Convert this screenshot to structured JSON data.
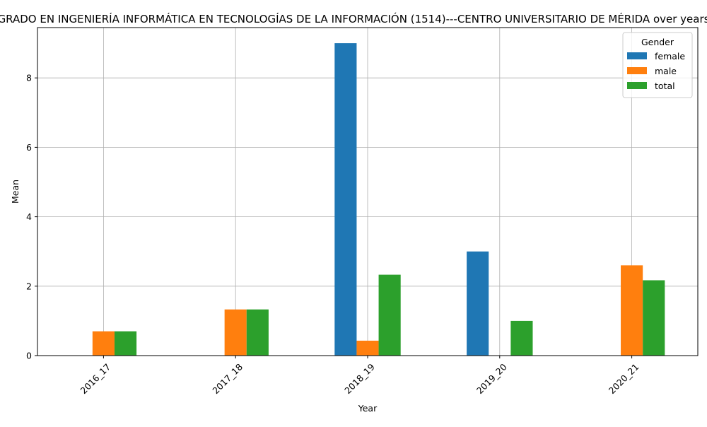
{
  "chart_data": {
    "type": "bar",
    "title": "GRADO EN INGENIERÍA INFORMÁTICA EN TECNOLOGÍAS DE LA INFORMACIÓN (1514)---CENTRO UNIVERSITARIO DE MÉRIDA over years",
    "xlabel": "Year",
    "ylabel": "Mean",
    "categories": [
      "2016_17",
      "2017_18",
      "2018_19",
      "2019_20",
      "2020_21"
    ],
    "series": [
      {
        "name": "female",
        "color": "#1f77b4",
        "values": [
          null,
          null,
          9.0,
          3.0,
          null
        ]
      },
      {
        "name": "male",
        "color": "#ff7f0e",
        "values": [
          0.7,
          1.33,
          0.43,
          null,
          2.6
        ]
      },
      {
        "name": "total",
        "color": "#2ca02c",
        "values": [
          0.7,
          1.33,
          2.33,
          1.0,
          2.17
        ]
      }
    ],
    "ylim": [
      0,
      9.45
    ],
    "yticks": [
      0,
      2,
      4,
      6,
      8
    ],
    "grid": true,
    "legend": {
      "title": "Gender",
      "position": "top-right"
    }
  }
}
